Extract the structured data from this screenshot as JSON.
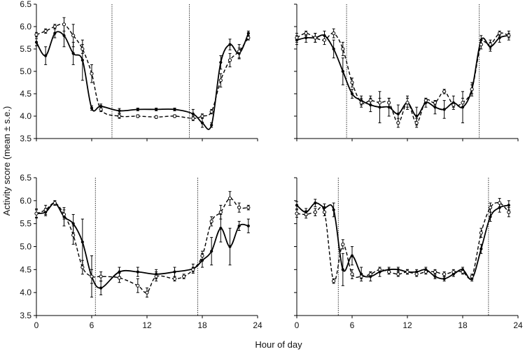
{
  "figure": {
    "ylabel": "Activity score (mean ± s.e.)",
    "xlabel": "Hour of day"
  },
  "chart_data": [
    {
      "type": "line",
      "panel": "top-left",
      "xlim": [
        0,
        24
      ],
      "ylim": [
        3.5,
        6.5
      ],
      "xticks": [
        "0",
        "6",
        "12",
        "18",
        "24"
      ],
      "yticks": [
        "3.5",
        "4.0",
        "4.5",
        "5.0",
        "5.5",
        "6.0",
        "6.5"
      ],
      "show_yticks": true,
      "show_xticks": false,
      "vlines": [
        8.2,
        16.6
      ],
      "series": [
        {
          "style": "solid",
          "x": [
            0,
            1,
            2,
            3,
            4,
            5,
            6,
            7,
            9,
            11,
            13,
            15,
            17,
            18,
            19,
            20,
            21,
            22,
            23
          ],
          "y": [
            5.65,
            5.35,
            5.85,
            5.8,
            5.4,
            5.25,
            4.18,
            4.22,
            4.12,
            4.15,
            4.15,
            4.15,
            4.05,
            3.85,
            3.8,
            5.2,
            5.6,
            5.4,
            5.85
          ],
          "err": [
            0.08,
            0.2,
            0.1,
            0.25,
            0.25,
            0.45,
            0.05,
            0.05,
            0.05,
            0.03,
            0.03,
            0.03,
            0.1,
            0.1,
            0.05,
            0.15,
            0.12,
            0.12,
            0.05
          ]
        },
        {
          "style": "dashed",
          "x": [
            0,
            1,
            2,
            3,
            4,
            5,
            6,
            7,
            9,
            11,
            13,
            15,
            17,
            18,
            19,
            20,
            21,
            22,
            23
          ],
          "y": [
            5.82,
            5.9,
            6.0,
            6.05,
            5.8,
            5.5,
            4.95,
            4.15,
            4.0,
            4.0,
            3.98,
            4.0,
            3.95,
            4.0,
            4.1,
            4.8,
            5.25,
            5.45,
            5.75
          ],
          "err": [
            0.05,
            0.05,
            0.05,
            0.15,
            0.25,
            0.1,
            0.2,
            0.05,
            0.05,
            0.03,
            0.03,
            0.03,
            0.05,
            0.05,
            0.05,
            0.15,
            0.15,
            0.15,
            0.05
          ]
        }
      ]
    },
    {
      "type": "line",
      "panel": "top-right",
      "xlim": [
        0,
        24
      ],
      "ylim": [
        3.5,
        6.5
      ],
      "xticks": [
        "0",
        "6",
        "12",
        "18",
        "24"
      ],
      "yticks": [
        "3.5",
        "4.0",
        "4.5",
        "5.0",
        "5.5",
        "6.0",
        "6.5"
      ],
      "show_yticks": false,
      "show_xticks": false,
      "vlines": [
        5.4,
        19.8
      ],
      "series": [
        {
          "style": "solid",
          "x": [
            0,
            1,
            2,
            3,
            4,
            5,
            6,
            7,
            8,
            9,
            10,
            11,
            12,
            13,
            14,
            15,
            16,
            17,
            18,
            19,
            20,
            21,
            22,
            23
          ],
          "y": [
            5.7,
            5.75,
            5.75,
            5.8,
            5.5,
            5.0,
            4.5,
            4.35,
            4.25,
            4.2,
            4.2,
            4.05,
            4.3,
            4.0,
            4.3,
            4.2,
            4.15,
            4.3,
            4.2,
            4.6,
            5.7,
            5.55,
            5.75,
            5.8
          ],
          "err": [
            0.1,
            0.1,
            0.1,
            0.1,
            0.2,
            0.3,
            0.1,
            0.1,
            0.15,
            0.35,
            0.2,
            0.2,
            0.15,
            0.2,
            0.1,
            0.15,
            0.2,
            0.15,
            0.35,
            0.15,
            0.1,
            0.1,
            0.1,
            0.1
          ]
        },
        {
          "style": "dashed",
          "x": [
            0,
            1,
            2,
            3,
            4,
            5,
            6,
            7,
            8,
            9,
            10,
            11,
            12,
            13,
            14,
            15,
            16,
            17,
            18,
            19,
            20,
            21,
            22,
            23
          ],
          "y": [
            5.75,
            5.85,
            5.75,
            5.7,
            5.85,
            5.5,
            4.75,
            4.3,
            4.35,
            4.3,
            4.3,
            3.85,
            4.3,
            3.85,
            4.35,
            4.3,
            4.55,
            4.25,
            4.3,
            4.6,
            5.6,
            5.6,
            5.85,
            5.8
          ],
          "err": [
            0.1,
            0.05,
            0.1,
            0.1,
            0.1,
            0.15,
            0.1,
            0.1,
            0.1,
            0.1,
            0.1,
            0.1,
            0.1,
            0.1,
            0.05,
            0.05,
            0.05,
            0.05,
            0.1,
            0.1,
            0.1,
            0.1,
            0.05,
            0.05
          ]
        }
      ]
    },
    {
      "type": "line",
      "panel": "bottom-left",
      "xlim": [
        0,
        24
      ],
      "ylim": [
        3.5,
        6.5
      ],
      "xticks": [
        "0",
        "6",
        "12",
        "18",
        "24"
      ],
      "yticks": [
        "3.5",
        "4.0",
        "4.5",
        "5.0",
        "5.5",
        "6.0",
        "6.5"
      ],
      "show_yticks": true,
      "show_xticks": true,
      "vlines": [
        6.4,
        17.5
      ],
      "series": [
        {
          "style": "solid",
          "x": [
            0,
            1,
            2,
            3,
            4,
            5,
            6,
            7,
            9,
            11,
            13,
            15,
            17,
            18,
            19,
            20,
            21,
            22,
            23
          ],
          "y": [
            5.72,
            5.75,
            5.95,
            5.65,
            5.5,
            5.1,
            4.35,
            4.1,
            4.45,
            4.45,
            4.4,
            4.45,
            4.52,
            4.7,
            4.9,
            5.4,
            5.0,
            5.45,
            5.45
          ],
          "err": [
            0.08,
            0.08,
            0.05,
            0.2,
            0.2,
            0.5,
            0.45,
            0.15,
            0.1,
            0.1,
            0.1,
            0.1,
            0.1,
            0.15,
            0.3,
            0.3,
            0.4,
            0.1,
            0.15
          ]
        },
        {
          "style": "dashed",
          "x": [
            0,
            1,
            2,
            3,
            4,
            5,
            6,
            7,
            9,
            11,
            12,
            13,
            15,
            16,
            17,
            18,
            19,
            20,
            21,
            22,
            23
          ],
          "y": [
            5.72,
            5.8,
            5.95,
            5.7,
            5.25,
            4.55,
            4.35,
            4.35,
            4.32,
            4.15,
            4.0,
            4.35,
            4.3,
            4.35,
            4.5,
            4.8,
            5.55,
            5.75,
            6.05,
            5.85,
            5.85
          ],
          "err": [
            0.1,
            0.1,
            0.05,
            0.1,
            0.2,
            0.15,
            0.15,
            0.1,
            0.1,
            0.15,
            0.1,
            0.1,
            0.05,
            0.05,
            0.05,
            0.1,
            0.1,
            0.15,
            0.15,
            0.1,
            0.05
          ]
        }
      ]
    },
    {
      "type": "line",
      "panel": "bottom-right",
      "xlim": [
        0,
        24
      ],
      "ylim": [
        3.5,
        6.5
      ],
      "xticks": [
        "0",
        "6",
        "12",
        "18",
        "24"
      ],
      "yticks": [
        "3.5",
        "4.0",
        "4.5",
        "5.0",
        "5.5",
        "6.0",
        "6.5"
      ],
      "show_yticks": false,
      "show_xticks": true,
      "vlines": [
        4.5,
        20.8
      ],
      "series": [
        {
          "style": "solid",
          "x": [
            0,
            1,
            2,
            3,
            4,
            5,
            6,
            7,
            8,
            9,
            10,
            11,
            12,
            13,
            14,
            15,
            16,
            17,
            18,
            19,
            20,
            21,
            22,
            23
          ],
          "y": [
            5.9,
            5.75,
            5.95,
            5.85,
            5.8,
            4.5,
            4.8,
            4.4,
            4.35,
            4.45,
            4.5,
            4.5,
            4.45,
            4.45,
            4.5,
            4.35,
            4.3,
            4.4,
            4.5,
            4.3,
            4.95,
            5.65,
            5.85,
            5.9
          ],
          "err": [
            0.08,
            0.08,
            0.08,
            0.08,
            0.15,
            0.35,
            0.2,
            0.15,
            0.1,
            0.1,
            0.05,
            0.05,
            0.05,
            0.05,
            0.05,
            0.05,
            0.05,
            0.05,
            0.05,
            0.05,
            0.1,
            0.1,
            0.1,
            0.1
          ]
        },
        {
          "style": "dashed",
          "x": [
            0,
            1,
            2,
            3,
            4,
            5,
            6,
            7,
            8,
            9,
            10,
            11,
            12,
            13,
            14,
            15,
            16,
            17,
            18,
            19,
            20,
            21,
            22,
            23
          ],
          "y": [
            5.72,
            5.7,
            5.75,
            5.75,
            4.25,
            5.05,
            4.4,
            4.35,
            4.4,
            4.5,
            4.45,
            4.4,
            4.45,
            4.4,
            4.45,
            4.45,
            4.4,
            4.45,
            4.45,
            4.35,
            5.3,
            5.85,
            5.95,
            5.75
          ],
          "err": [
            0.08,
            0.08,
            0.08,
            0.08,
            0.05,
            0.1,
            0.1,
            0.05,
            0.05,
            0.05,
            0.05,
            0.05,
            0.05,
            0.05,
            0.05,
            0.05,
            0.05,
            0.05,
            0.05,
            0.05,
            0.1,
            0.1,
            0.1,
            0.1
          ]
        }
      ]
    }
  ]
}
